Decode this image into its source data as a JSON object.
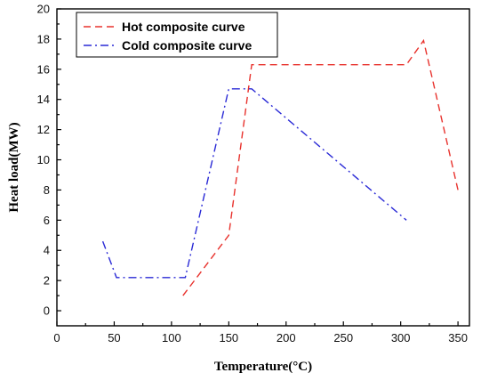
{
  "chart_data": {
    "type": "line",
    "title": "",
    "xlabel": "Temperature(°C)",
    "ylabel": "Heat load(MW)",
    "xlim": [
      0,
      360
    ],
    "ylim": [
      -1,
      20
    ],
    "x_ticks": [
      0,
      50,
      100,
      150,
      200,
      250,
      300,
      350
    ],
    "y_ticks": [
      0,
      2,
      4,
      6,
      8,
      10,
      12,
      14,
      16,
      18,
      20
    ],
    "grid": false,
    "legend_position": "top-left",
    "series": [
      {
        "name": "Hot composite curve",
        "color": "#e8322d",
        "dash": "dashed",
        "points": [
          [
            110,
            1.0
          ],
          [
            150,
            5.0
          ],
          [
            170,
            16.3
          ],
          [
            305,
            16.3
          ],
          [
            320,
            17.9
          ],
          [
            350,
            8.0
          ]
        ]
      },
      {
        "name": "Cold composite curve",
        "color": "#2a2ad6",
        "dash": "dash-dot",
        "points": [
          [
            40,
            4.6
          ],
          [
            52,
            2.2
          ],
          [
            112,
            2.2
          ],
          [
            150,
            14.7
          ],
          [
            170,
            14.7
          ],
          [
            305,
            6.0
          ]
        ]
      }
    ]
  }
}
